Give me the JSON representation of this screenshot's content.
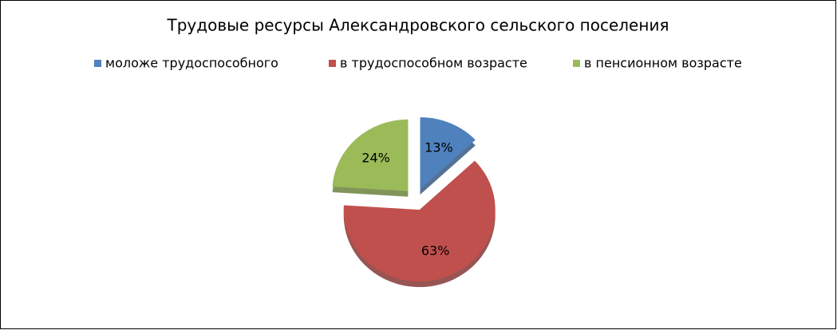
{
  "chart_data": {
    "type": "pie",
    "title": "Трудовые ресурсы Александровского сельского поселения",
    "categories": [
      "моложе трудоспособного",
      "в трудоспособном возрасте",
      "в пенсионном возрасте"
    ],
    "values": [
      13,
      63,
      24
    ],
    "value_labels": [
      "13%",
      "63%",
      "24%"
    ],
    "colors": [
      "#4f81bd",
      "#c0504d",
      "#9bbb59"
    ],
    "exploded": true,
    "legend": "top"
  }
}
